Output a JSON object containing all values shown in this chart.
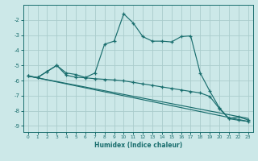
{
  "xlabel": "Humidex (Indice chaleur)",
  "background_color": "#cce8e8",
  "grid_color": "#aacccc",
  "line_color": "#1a6e6e",
  "xlim": [
    -0.5,
    23.5
  ],
  "ylim": [
    -9.4,
    -1.0
  ],
  "yticks": [
    -9,
    -8,
    -7,
    -6,
    -5,
    -4,
    -3,
    -2
  ],
  "xticks": [
    0,
    1,
    2,
    3,
    4,
    5,
    6,
    7,
    8,
    9,
    10,
    11,
    12,
    13,
    14,
    15,
    16,
    17,
    18,
    19,
    20,
    21,
    22,
    23
  ],
  "series1_x": [
    0,
    1,
    2,
    3,
    4,
    5,
    6,
    7,
    8,
    9,
    10,
    11,
    12,
    13,
    14,
    15,
    16,
    17,
    18,
    19,
    20,
    21,
    22,
    23
  ],
  "series1_y": [
    -5.7,
    -5.8,
    -5.4,
    -5.0,
    -5.5,
    -5.6,
    -5.8,
    -5.5,
    -3.6,
    -3.4,
    -1.6,
    -2.2,
    -3.1,
    -3.4,
    -3.4,
    -3.45,
    -3.1,
    -3.05,
    -5.5,
    -6.7,
    -7.8,
    -8.5,
    -8.4,
    -8.6
  ],
  "series2_x": [
    0,
    1,
    2,
    3,
    4,
    5,
    6,
    7,
    8,
    9,
    10,
    11,
    12,
    13,
    14,
    15,
    16,
    17,
    18,
    19,
    20,
    21,
    22,
    23
  ],
  "series2_y": [
    -5.7,
    -5.8,
    -5.4,
    -5.0,
    -5.65,
    -5.78,
    -5.82,
    -5.88,
    -5.92,
    -5.96,
    -6.02,
    -6.12,
    -6.22,
    -6.32,
    -6.42,
    -6.52,
    -6.62,
    -6.72,
    -6.82,
    -7.05,
    -7.85,
    -8.52,
    -8.62,
    -8.7
  ],
  "series3_x": [
    0,
    23
  ],
  "series3_y": [
    -5.7,
    -8.7
  ],
  "series4_x": [
    0,
    23
  ],
  "series4_y": [
    -5.7,
    -8.5
  ]
}
